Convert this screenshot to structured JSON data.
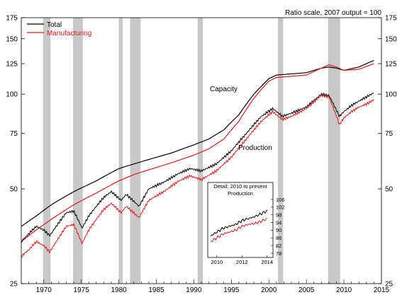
{
  "chart_data": {
    "type": "line",
    "scale_note": "Ratio scale, 2007 output = 100",
    "y_scale": "log",
    "ylim": [
      25,
      175
    ],
    "y_ticks": [
      "25",
      "50",
      "75",
      "100",
      "125",
      "150",
      "175"
    ],
    "xlim": [
      1967,
      2015
    ],
    "x_ticks": [
      "1970",
      "1975",
      "1980",
      "1985",
      "1990",
      "1995",
      "2000",
      "2005",
      "2010",
      "2015"
    ],
    "legend": [
      {
        "name": "Total",
        "color": "#000000"
      },
      {
        "name": "Manufacturing",
        "color": "#e31a1c"
      }
    ],
    "annotations": [
      "Capacity",
      "Production"
    ],
    "recessions": [
      [
        1969.9,
        1970.9
      ],
      [
        1973.9,
        1975.2
      ],
      [
        1980.0,
        1980.5
      ],
      [
        1981.5,
        1982.9
      ],
      [
        1990.5,
        1991.2
      ],
      [
        2001.2,
        2001.9
      ],
      [
        2007.9,
        2009.5
      ]
    ],
    "series": [
      {
        "name": "Total",
        "measure": "Capacity",
        "color": "#000000",
        "points": [
          [
            1967,
            38
          ],
          [
            1969,
            41
          ],
          [
            1971,
            44.5
          ],
          [
            1974,
            49
          ],
          [
            1977,
            53
          ],
          [
            1980,
            58
          ],
          [
            1982,
            60
          ],
          [
            1984,
            62
          ],
          [
            1987,
            65
          ],
          [
            1990,
            69
          ],
          [
            1992,
            72
          ],
          [
            1994,
            77
          ],
          [
            1996,
            86
          ],
          [
            1998,
            100
          ],
          [
            2000,
            112
          ],
          [
            2001,
            115
          ],
          [
            2003,
            116
          ],
          [
            2005,
            117
          ],
          [
            2007,
            121
          ],
          [
            2008,
            122
          ],
          [
            2009,
            121
          ],
          [
            2010,
            119
          ],
          [
            2012,
            122
          ],
          [
            2014,
            128
          ]
        ]
      },
      {
        "name": "Manufacturing",
        "measure": "Capacity",
        "color": "#e31a1c",
        "points": [
          [
            1967,
            34
          ],
          [
            1969,
            37
          ],
          [
            1971,
            40
          ],
          [
            1974,
            44.5
          ],
          [
            1977,
            48.5
          ],
          [
            1980,
            53
          ],
          [
            1982,
            55.5
          ],
          [
            1984,
            57.5
          ],
          [
            1987,
            60.5
          ],
          [
            1990,
            64
          ],
          [
            1992,
            67
          ],
          [
            1994,
            72
          ],
          [
            1996,
            82
          ],
          [
            1998,
            97
          ],
          [
            2000,
            110
          ],
          [
            2001,
            113
          ],
          [
            2003,
            114
          ],
          [
            2005,
            115
          ],
          [
            2007,
            121
          ],
          [
            2008,
            124
          ],
          [
            2009,
            122
          ],
          [
            2010,
            119
          ],
          [
            2012,
            120
          ],
          [
            2014,
            125
          ]
        ]
      },
      {
        "name": "Total",
        "measure": "Production",
        "color": "#000000",
        "points": [
          [
            1967,
            34
          ],
          [
            1968,
            36
          ],
          [
            1969,
            38
          ],
          [
            1970,
            37
          ],
          [
            1970.8,
            35.5
          ],
          [
            1972,
            39
          ],
          [
            1973,
            42
          ],
          [
            1974,
            42.5
          ],
          [
            1975.1,
            37.5
          ],
          [
            1976,
            41
          ],
          [
            1977,
            44
          ],
          [
            1978,
            47
          ],
          [
            1979,
            49
          ],
          [
            1980.3,
            46
          ],
          [
            1981,
            48
          ],
          [
            1982.7,
            44
          ],
          [
            1984,
            50
          ],
          [
            1986,
            52.5
          ],
          [
            1988,
            56
          ],
          [
            1989.5,
            58
          ],
          [
            1991,
            57
          ],
          [
            1993,
            60
          ],
          [
            1995,
            66
          ],
          [
            1997,
            75
          ],
          [
            1999,
            85
          ],
          [
            2000.5,
            90
          ],
          [
            2001.8,
            85
          ],
          [
            2003,
            87
          ],
          [
            2005,
            91
          ],
          [
            2007,
            100
          ],
          [
            2008,
            99
          ],
          [
            2009.4,
            85
          ],
          [
            2010,
            88
          ],
          [
            2011,
            92
          ],
          [
            2012,
            95
          ],
          [
            2013,
            98
          ],
          [
            2014,
            101
          ]
        ]
      },
      {
        "name": "Manufacturing",
        "measure": "Production",
        "color": "#e31a1c",
        "points": [
          [
            1967,
            30.5
          ],
          [
            1968,
            32
          ],
          [
            1969,
            34
          ],
          [
            1970,
            33
          ],
          [
            1970.8,
            31.5
          ],
          [
            1972,
            35
          ],
          [
            1973,
            38
          ],
          [
            1974,
            38.5
          ],
          [
            1975.1,
            33.5
          ],
          [
            1976,
            37
          ],
          [
            1977,
            40
          ],
          [
            1978,
            43
          ],
          [
            1979,
            45
          ],
          [
            1980.3,
            42
          ],
          [
            1981,
            44
          ],
          [
            1982.7,
            40.5
          ],
          [
            1984,
            46
          ],
          [
            1986,
            49
          ],
          [
            1988,
            53
          ],
          [
            1989.5,
            55
          ],
          [
            1991,
            53.5
          ],
          [
            1993,
            57
          ],
          [
            1995,
            63
          ],
          [
            1997,
            72
          ],
          [
            1999,
            82
          ],
          [
            2000.5,
            88
          ],
          [
            2001.8,
            83
          ],
          [
            2003,
            85
          ],
          [
            2005,
            90
          ],
          [
            2007,
            99
          ],
          [
            2008,
            98
          ],
          [
            2009.4,
            80
          ],
          [
            2010,
            84
          ],
          [
            2011,
            88
          ],
          [
            2012,
            91
          ],
          [
            2013,
            93
          ],
          [
            2014,
            96
          ]
        ]
      }
    ],
    "inset": {
      "title": "Detail: 2010 to present",
      "subtitle": "Production",
      "xlim": [
        2009.5,
        2014.3
      ],
      "x_ticks": [
        "2010",
        "2012",
        "2014"
      ],
      "ylim": [
        78,
        106
      ],
      "y_ticks": [
        "78",
        "82",
        "86",
        "90",
        "94",
        "98",
        "102",
        "106"
      ],
      "series": [
        {
          "name": "Total",
          "color": "#000000",
          "points": [
            [
              2009.5,
              87
            ],
            [
              2010,
              89
            ],
            [
              2010.5,
              91
            ],
            [
              2011,
              92
            ],
            [
              2011.5,
              93
            ],
            [
              2012,
              95
            ],
            [
              2012.5,
              96
            ],
            [
              2013,
              97
            ],
            [
              2013.5,
              98.5
            ],
            [
              2014,
              100
            ]
          ]
        },
        {
          "name": "Manufacturing",
          "color": "#e31a1c",
          "points": [
            [
              2009.5,
              84
            ],
            [
              2010,
              86
            ],
            [
              2010.5,
              88
            ],
            [
              2011,
              89
            ],
            [
              2011.5,
              90
            ],
            [
              2012,
              92
            ],
            [
              2012.5,
              93
            ],
            [
              2013,
              93.5
            ],
            [
              2013.5,
              94.5
            ],
            [
              2014,
              96
            ]
          ]
        }
      ]
    }
  }
}
